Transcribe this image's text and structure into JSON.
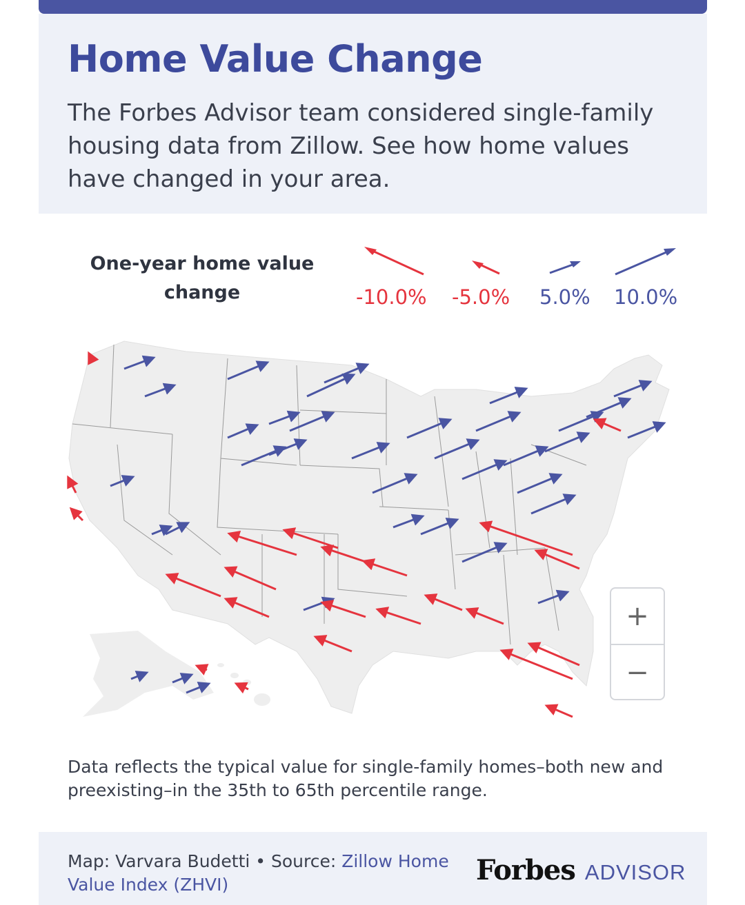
{
  "header": {
    "title": "Home Value Change",
    "subtitle": "The Forbes Advisor team considered single-family housing data from Zillow. See how home values have changed in your area."
  },
  "legend": {
    "title": "One-year home value change",
    "items": [
      {
        "label": "-10.0%",
        "value": -10.0
      },
      {
        "label": "-5.0%",
        "value": -5.0
      },
      {
        "label": "5.0%",
        "value": 5.0
      },
      {
        "label": "10.0%",
        "value": 10.0
      }
    ]
  },
  "colors": {
    "increase": "#4a55a2",
    "decrease": "#e5343e",
    "land": "#eeeeee",
    "accent": "#3d4a9c"
  },
  "map_controls": {
    "zoom_in": "+",
    "zoom_out": "−"
  },
  "note": "Data reflects the typical value for single-family homes–both new and preexisting–in the 35th to 65th percentile range.",
  "footer": {
    "credit_prefix": "Map: Varvara Budetti • Source: ",
    "source_link": "Zillow Home Value Index (ZHVI)",
    "logo_main": "Forbes",
    "logo_sub": "ADVISOR"
  }
}
